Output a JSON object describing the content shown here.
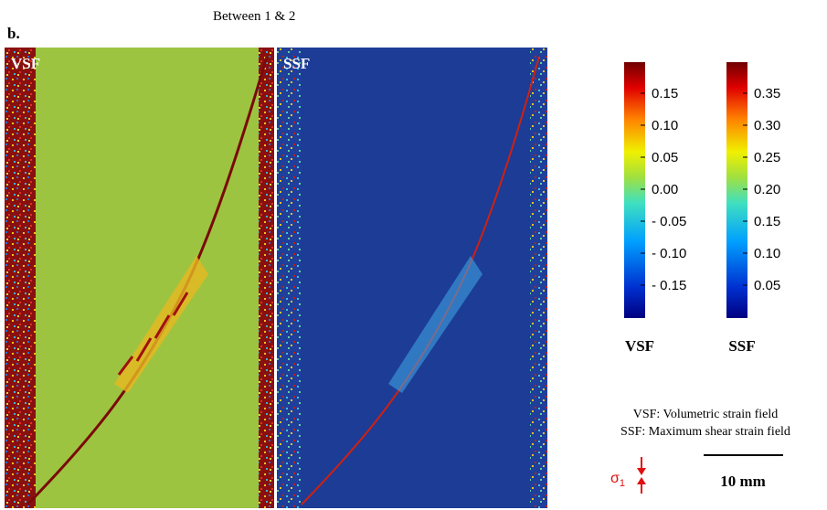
{
  "panel_label": "b.",
  "title": "Between 1 & 2",
  "images": [
    {
      "label": "VSF"
    },
    {
      "label": "SSF"
    }
  ],
  "colorbars": [
    {
      "ticks": [
        "0.15",
        "0.10",
        "0.05",
        "0.00",
        "- 0.05",
        "- 0.10",
        "- 0.15"
      ],
      "label": "VSF"
    },
    {
      "ticks": [
        "0.35",
        "0.30",
        "0.25",
        "0.20",
        "0.15",
        "0.10",
        "0.05"
      ],
      "label": "SSF"
    }
  ],
  "legend": [
    "VSF: Volumetric strain field",
    "SSF: Maximum shear strain field"
  ],
  "stress": {
    "symbol": "σ",
    "subscript": "1"
  },
  "scale_bar": "10 mm"
}
